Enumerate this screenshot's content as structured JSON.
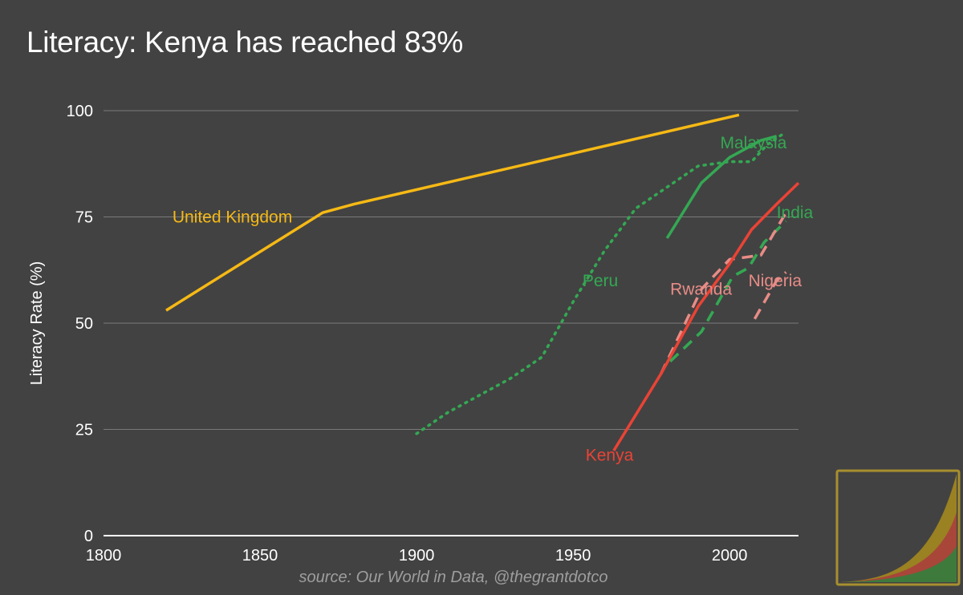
{
  "title": "Literacy: Kenya has reached 83%",
  "source": "source: Our World in Data, @thegrantdotco",
  "colors": {
    "background": "#424242",
    "grid": "#7a7a7a",
    "axis": "#ffffff",
    "text": "#ffffff",
    "uk": "#f6b915",
    "green": "#34a853",
    "red": "#ea4335",
    "pink": "#e88c87",
    "source_text": "#9e9e9e"
  },
  "chart_data": {
    "type": "line",
    "title": "Literacy: Kenya has reached 83%",
    "xlabel": "",
    "ylabel": "Literacy Rate (%)",
    "xlim": [
      1800,
      2022
    ],
    "ylim": [
      0,
      100
    ],
    "x_ticks": [
      1800,
      1850,
      1900,
      1950,
      2000
    ],
    "y_ticks": [
      0,
      25,
      50,
      75,
      100
    ],
    "grid": true,
    "legend": "inline labels",
    "series": [
      {
        "name": "United Kingdom",
        "color": "#f6b915",
        "dash": "solid",
        "points": [
          [
            1820,
            53
          ],
          [
            1870,
            76
          ],
          [
            1880,
            78
          ],
          [
            2003,
            99
          ]
        ],
        "label": {
          "x": 1822,
          "y": 75
        }
      },
      {
        "name": "Peru",
        "color": "#34a853",
        "dash": "dotted",
        "points": [
          [
            1900,
            24
          ],
          [
            1910,
            29
          ],
          [
            1930,
            37
          ],
          [
            1940,
            42
          ],
          [
            1950,
            55
          ],
          [
            1960,
            67
          ],
          [
            1970,
            77
          ],
          [
            1980,
            82
          ],
          [
            1990,
            87
          ],
          [
            2000,
            88
          ],
          [
            2007,
            88
          ],
          [
            2012,
            92
          ],
          [
            2018,
            95
          ]
        ],
        "label": {
          "x": 1953,
          "y": 60
        }
      },
      {
        "name": "Malaysia",
        "color": "#34a853",
        "dash": "solid",
        "points": [
          [
            1980,
            70
          ],
          [
            1991,
            83
          ],
          [
            2000,
            89
          ],
          [
            2010,
            93
          ],
          [
            2015,
            94
          ]
        ],
        "label": {
          "x": 1997,
          "y": 92.5
        }
      },
      {
        "name": "India",
        "color": "#34a853",
        "dash": "dashed",
        "points": [
          [
            1981,
            41
          ],
          [
            1991,
            48
          ],
          [
            2001,
            61
          ],
          [
            2006,
            63
          ],
          [
            2011,
            69
          ],
          [
            2018,
            74
          ]
        ],
        "label": {
          "x": 2015,
          "y": 76
        }
      },
      {
        "name": "Rwanda",
        "color": "#e88c87",
        "dash": "dashed",
        "points": [
          [
            1978,
            38
          ],
          [
            1991,
            58
          ],
          [
            2000,
            65
          ],
          [
            2010,
            66
          ],
          [
            2018,
            76
          ]
        ],
        "label": {
          "x": 1981,
          "y": 58
        }
      },
      {
        "name": "Nigeria",
        "color": "#e88c87",
        "dash": "dashed",
        "points": [
          [
            2008,
            51
          ],
          [
            2015,
            60
          ],
          [
            2018,
            62
          ]
        ],
        "label": {
          "x": 2006,
          "y": 60
        }
      },
      {
        "name": "Kenya",
        "color": "#ea4335",
        "dash": "solid",
        "points": [
          [
            1963,
            20
          ],
          [
            1978,
            38
          ],
          [
            1990,
            54
          ],
          [
            2000,
            64
          ],
          [
            2007,
            72
          ],
          [
            2015,
            78
          ],
          [
            2022,
            83
          ]
        ],
        "label": {
          "x": 1954,
          "y": 19
        }
      }
    ]
  }
}
